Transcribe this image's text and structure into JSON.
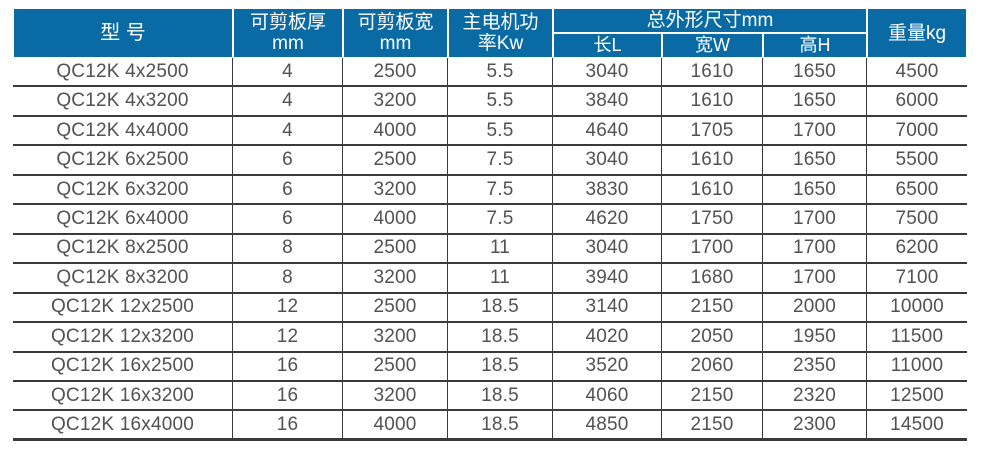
{
  "colors": {
    "header_bg": "#0a6ba4",
    "header_text": "#ffffff",
    "body_text": "#515254",
    "line": "#3a3a3c"
  },
  "table": {
    "header": {
      "model": "型 号",
      "thickness": "可剪板厚\nmm",
      "width": "可剪板宽\nmm",
      "power": "主电机功\n率Kw",
      "dimensions": "总外形尺寸mm",
      "dim_length": "长L",
      "dim_width": "宽W",
      "dim_height": "高H",
      "weight": "重量kg"
    },
    "rows": [
      [
        "QC12K 4x2500",
        "4",
        "2500",
        "5.5",
        "3040",
        "1610",
        "1650",
        "4500"
      ],
      [
        "QC12K 4x3200",
        "4",
        "3200",
        "5.5",
        "3840",
        "1610",
        "1650",
        "6000"
      ],
      [
        "QC12K 4x4000",
        "4",
        "4000",
        "5.5",
        "4640",
        "1705",
        "1700",
        "7000"
      ],
      [
        "QC12K 6x2500",
        "6",
        "2500",
        "7.5",
        "3040",
        "1610",
        "1650",
        "5500"
      ],
      [
        "QC12K 6x3200",
        "6",
        "3200",
        "7.5",
        "3830",
        "1610",
        "1650",
        "6500"
      ],
      [
        "QC12K 6x4000",
        "6",
        "4000",
        "7.5",
        "4620",
        "1750",
        "1700",
        "7500"
      ],
      [
        "QC12K 8x2500",
        "8",
        "2500",
        "11",
        "3040",
        "1700",
        "1700",
        "6200"
      ],
      [
        "QC12K 8x3200",
        "8",
        "3200",
        "11",
        "3940",
        "1680",
        "1700",
        "7100"
      ],
      [
        "QC12K 12x2500",
        "12",
        "2500",
        "18.5",
        "3140",
        "2150",
        "2000",
        "10000"
      ],
      [
        "QC12K 12x3200",
        "12",
        "3200",
        "18.5",
        "4020",
        "2050",
        "1950",
        "11500"
      ],
      [
        "QC12K 16x2500",
        "16",
        "2500",
        "18.5",
        "3520",
        "2060",
        "2350",
        "11000"
      ],
      [
        "QC12K 16x3200",
        "16",
        "3200",
        "18.5",
        "4060",
        "2150",
        "2320",
        "12500"
      ],
      [
        "QC12K 16x4000",
        "16",
        "4000",
        "18.5",
        "4850",
        "2150",
        "2300",
        "14500"
      ]
    ]
  }
}
